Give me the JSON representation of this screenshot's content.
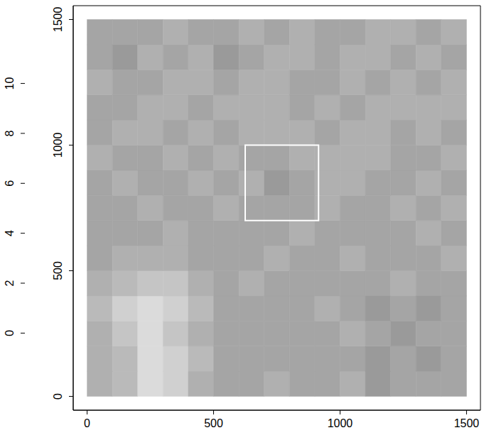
{
  "chart_data": {
    "type": "heatmap",
    "xlim": [
      -55,
      1555
    ],
    "ylim": [
      -55,
      1555
    ],
    "xticks": [
      0,
      500,
      1000,
      1500
    ],
    "yticks": [
      0,
      500,
      1000,
      1500
    ],
    "grid": false,
    "cell_x": [
      0,
      100,
      200,
      300,
      400,
      500,
      600,
      700,
      800,
      900,
      1000,
      1100,
      1200,
      1300,
      1400,
      1500
    ],
    "cell_y": [
      0,
      100,
      200,
      300,
      400,
      500,
      600,
      700,
      800,
      900,
      1000,
      1100,
      1200,
      1300,
      1400,
      1500
    ],
    "cells": [
      [
        3,
        2.5,
        1,
        1.5,
        3,
        3.5,
        3.5,
        3,
        3.5,
        3.5,
        3,
        4,
        3.5,
        3.5,
        3.5
      ],
      [
        3,
        2.5,
        1,
        1.5,
        2.5,
        3.5,
        3.5,
        3.5,
        3.5,
        3.5,
        3.5,
        4,
        3.5,
        4,
        3.5
      ],
      [
        3,
        2,
        1,
        2,
        3,
        3.5,
        3.5,
        3.5,
        3.5,
        3.5,
        3,
        3.5,
        4,
        3.5,
        3.5
      ],
      [
        2.5,
        1.5,
        1,
        1.5,
        2.5,
        3.5,
        3.5,
        3.5,
        3.5,
        3,
        3.5,
        4,
        3.5,
        4,
        3.5
      ],
      [
        3,
        2.5,
        2,
        2,
        3,
        3.5,
        3,
        3.5,
        3.5,
        3.5,
        3.5,
        3.5,
        3,
        3.5,
        3.5
      ],
      [
        3.5,
        3,
        3,
        3,
        3.5,
        3.5,
        3.5,
        3,
        3.5,
        3.5,
        3,
        3.5,
        3.5,
        3.5,
        3
      ],
      [
        3.5,
        3.5,
        3.5,
        3,
        3.5,
        3.5,
        3.5,
        3.5,
        3,
        3.5,
        3.5,
        3.5,
        3.5,
        3,
        3.5
      ],
      [
        3.5,
        3.5,
        3,
        3.5,
        3.5,
        3,
        3.5,
        3.5,
        3.5,
        3,
        3.5,
        3.5,
        3,
        3.5,
        3
      ],
      [
        3.5,
        3,
        3.5,
        3.5,
        3,
        3.5,
        3,
        4,
        3.5,
        3,
        3,
        3.5,
        3.5,
        3,
        3.5
      ],
      [
        3,
        3.5,
        3.5,
        3,
        3.5,
        3,
        3.5,
        3.5,
        3,
        3,
        3,
        3,
        3.5,
        3.5,
        3
      ],
      [
        3.5,
        3,
        3,
        3.5,
        3,
        3.5,
        3,
        3,
        3,
        3.5,
        3,
        3,
        3.5,
        3,
        3.5
      ],
      [
        3.5,
        3.5,
        3,
        3,
        3.5,
        3,
        3,
        3,
        3.5,
        3,
        3.5,
        3,
        3,
        3,
        3
      ],
      [
        3,
        3.5,
        3.5,
        3,
        3,
        3.5,
        3,
        3,
        3.5,
        3.5,
        3,
        3.5,
        3,
        3.5,
        3
      ],
      [
        3.5,
        4,
        3,
        3.5,
        3,
        4,
        3.5,
        3,
        3,
        3.5,
        3,
        3,
        3.5,
        3,
        3.5
      ],
      [
        3.5,
        3.5,
        3.5,
        3,
        3.5,
        3.5,
        3,
        3.5,
        3,
        3.5,
        3.5,
        3,
        3,
        3.5,
        3
      ]
    ],
    "colorbar": {
      "range": [
        -0.7,
        10.5
      ],
      "ticks": [
        0,
        2,
        4,
        6,
        8,
        10
      ]
    },
    "highlight_box": {
      "x": [
        625,
        915
      ],
      "y": [
        700,
        1000
      ]
    }
  }
}
